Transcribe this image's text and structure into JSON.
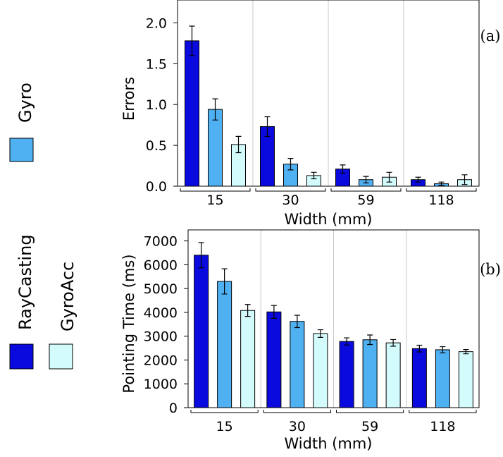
{
  "legend": {
    "items": [
      {
        "label": "Gyro",
        "color": "#4fb0f2"
      },
      {
        "label": "RayCasting",
        "color": "#0a0adf"
      },
      {
        "label": "GyroAcc",
        "color": "#d4fbfc"
      }
    ]
  },
  "chart_data": [
    {
      "type": "bar",
      "panel_label": "(a)",
      "xlabel": "Width (mm)",
      "ylabel": "Errors",
      "categories": [
        "15",
        "30",
        "59",
        "118"
      ],
      "ylim": [
        0,
        2.25
      ],
      "yticks": [
        "0.0",
        "0.5",
        "1.0",
        "1.5",
        "2.0"
      ],
      "ytick_values": [
        0,
        0.5,
        1.0,
        1.5,
        2.0
      ],
      "series": [
        {
          "name": "RayCasting",
          "color": "#0a0adf",
          "values": [
            1.78,
            0.73,
            0.21,
            0.08
          ],
          "errors": [
            0.18,
            0.12,
            0.05,
            0.03
          ]
        },
        {
          "name": "Gyro",
          "color": "#4fb0f2",
          "values": [
            0.94,
            0.27,
            0.08,
            0.03
          ],
          "errors": [
            0.13,
            0.07,
            0.04,
            0.02
          ]
        },
        {
          "name": "GyroAcc",
          "color": "#d4fbfc",
          "values": [
            0.51,
            0.13,
            0.11,
            0.08
          ],
          "errors": [
            0.1,
            0.04,
            0.06,
            0.06
          ]
        }
      ]
    },
    {
      "type": "bar",
      "panel_label": "(b)",
      "xlabel": "Width (mm)",
      "ylabel": "Pointing Time (ms)",
      "categories": [
        "15",
        "30",
        "59",
        "118"
      ],
      "ylim": [
        0,
        7500
      ],
      "yticks": [
        "0",
        "1000",
        "2000",
        "3000",
        "4000",
        "5000",
        "6000",
        "7000"
      ],
      "ytick_values": [
        0,
        1000,
        2000,
        3000,
        4000,
        5000,
        6000,
        7000
      ],
      "series": [
        {
          "name": "RayCasting",
          "color": "#0a0adf",
          "values": [
            6400,
            4020,
            2780,
            2480
          ],
          "errors": [
            530,
            270,
            150,
            140
          ]
        },
        {
          "name": "Gyro",
          "color": "#4fb0f2",
          "values": [
            5300,
            3620,
            2850,
            2430
          ],
          "errors": [
            530,
            260,
            200,
            130
          ]
        },
        {
          "name": "GyroAcc",
          "color": "#d4fbfc",
          "values": [
            4080,
            3110,
            2720,
            2350
          ],
          "errors": [
            250,
            160,
            140,
            90
          ]
        }
      ]
    }
  ]
}
